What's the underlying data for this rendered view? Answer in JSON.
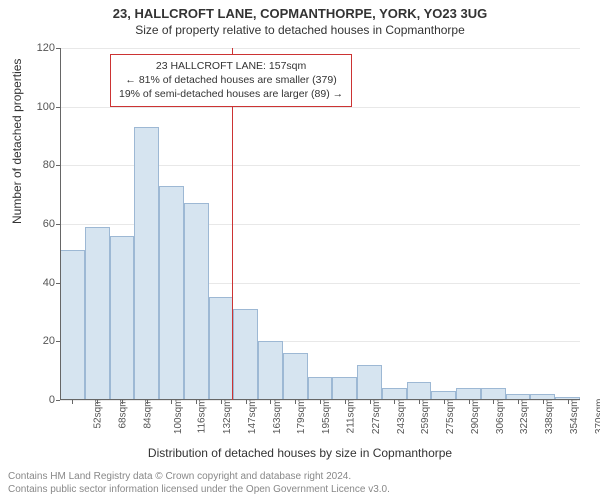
{
  "title": "23, HALLCROFT LANE, COPMANTHORPE, YORK, YO23 3UG",
  "subtitle": "Size of property relative to detached houses in Copmanthorpe",
  "ylabel": "Number of detached properties",
  "xlabel": "Distribution of detached houses by size in Copmanthorpe",
  "footer_line1": "Contains HM Land Registry data © Crown copyright and database right 2024.",
  "footer_line2": "Contains public sector information licensed under the Open Government Licence v3.0.",
  "annotation": {
    "line1": "23 HALLCROFT LANE: 157sqm",
    "line2": "← 81% of detached houses are smaller (379)",
    "line3": "19% of semi-detached houses are larger (89) →",
    "border_color": "#cc3333"
  },
  "chart": {
    "type": "histogram",
    "ylim": [
      0,
      120
    ],
    "ytick_step": 20,
    "yticks": [
      0,
      20,
      40,
      60,
      80,
      100,
      120
    ],
    "x_categories": [
      "52sqm",
      "68sqm",
      "84sqm",
      "100sqm",
      "116sqm",
      "132sqm",
      "147sqm",
      "163sqm",
      "179sqm",
      "195sqm",
      "211sqm",
      "227sqm",
      "243sqm",
      "259sqm",
      "275sqm",
      "290sqm",
      "306sqm",
      "322sqm",
      "338sqm",
      "354sqm",
      "370sqm"
    ],
    "bar_values": [
      51,
      59,
      56,
      93,
      73,
      67,
      35,
      31,
      20,
      16,
      8,
      8,
      12,
      4,
      6,
      3,
      4,
      4,
      2,
      2,
      1
    ],
    "bar_fill": "#d6e4f0",
    "bar_stroke": "#9db8d4",
    "bar_width_ratio": 1.0,
    "background": "#ffffff",
    "grid_color": "#e8e8e8",
    "axis_color": "#666666",
    "marker_line": {
      "x_index": 6.95,
      "color": "#cc3333"
    },
    "tick_fontsize": 10,
    "label_fontsize": 12
  }
}
